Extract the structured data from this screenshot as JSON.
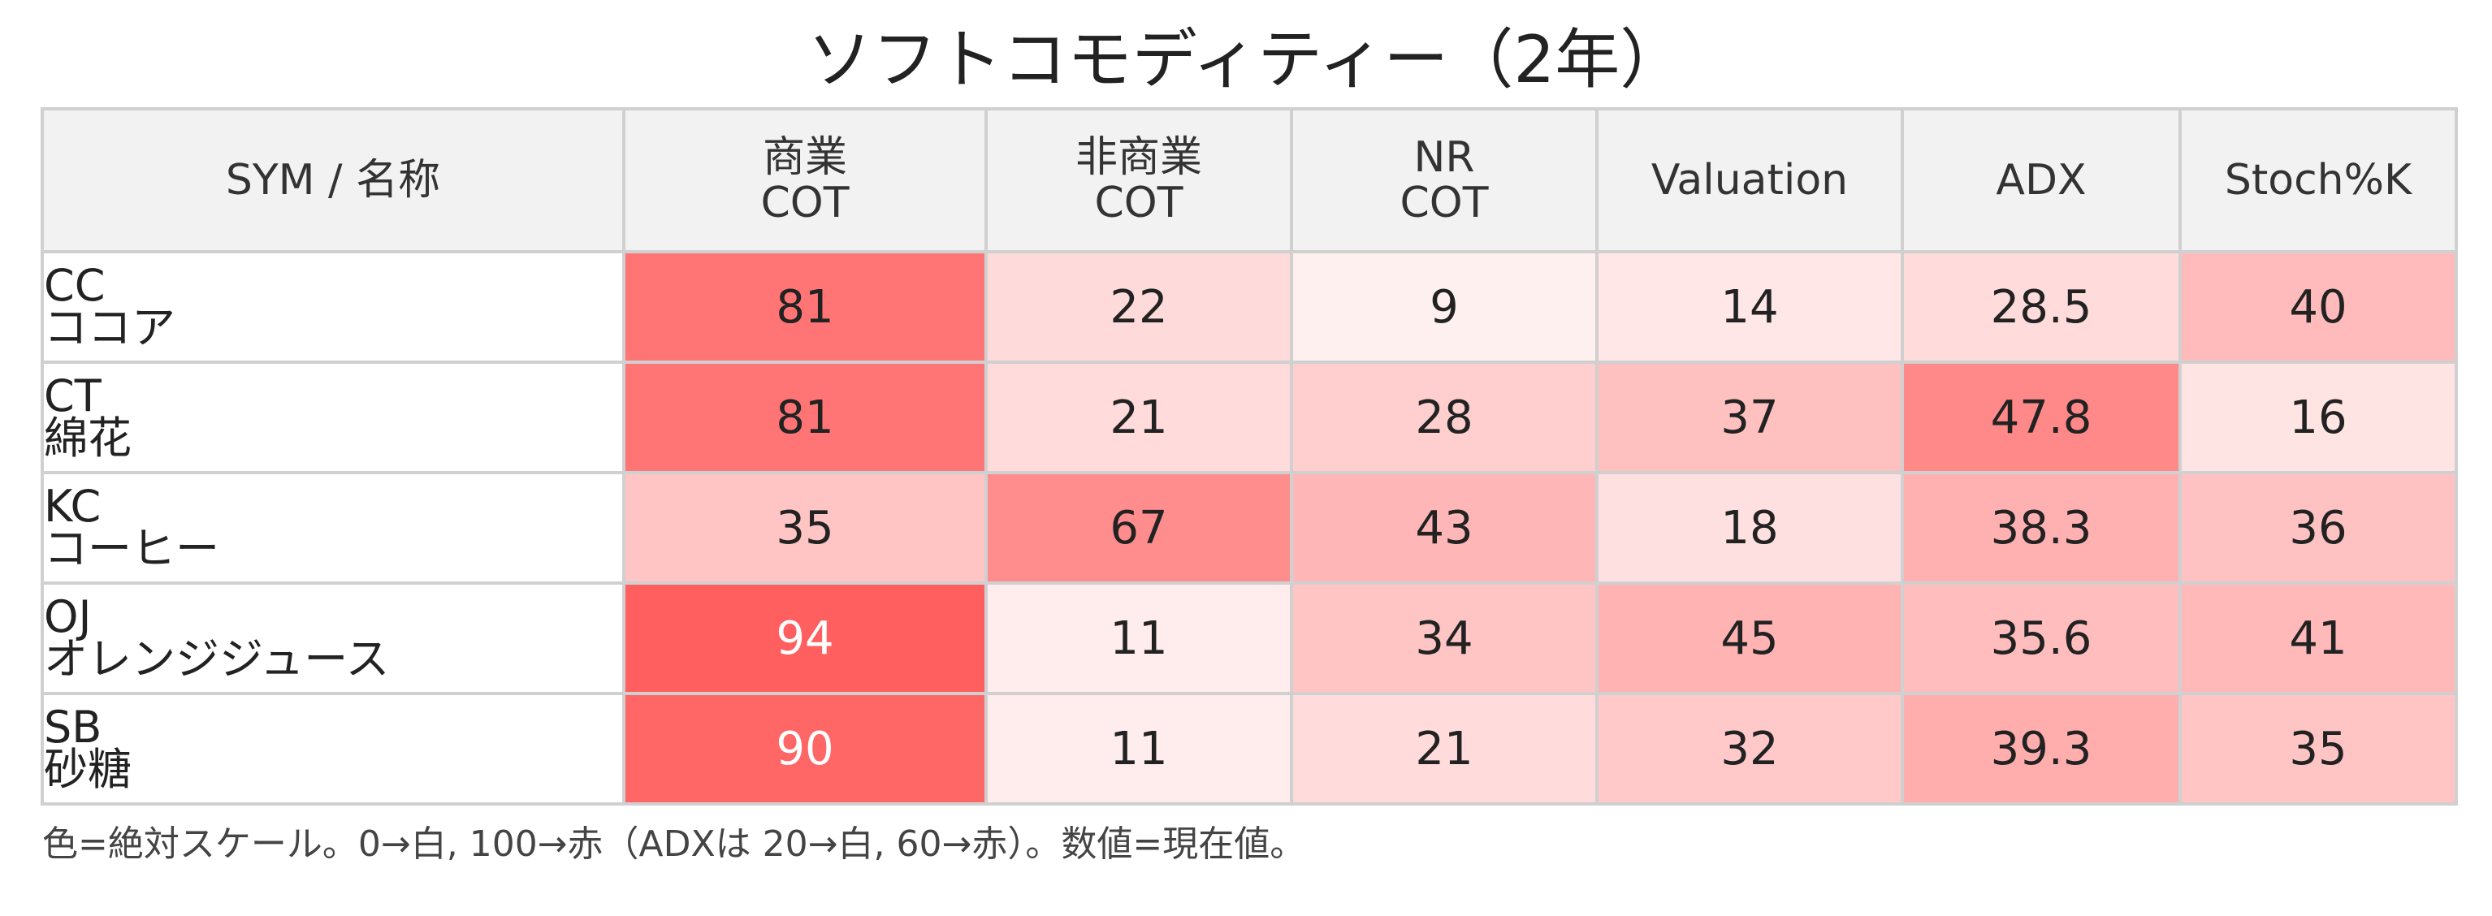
{
  "chart_data": {
    "type": "heatmap",
    "title": "ソフトコモディティー（2年）",
    "columns": [
      {
        "lines": [
          "SYM / 名称"
        ]
      },
      {
        "lines": [
          "商業",
          "COT"
        ]
      },
      {
        "lines": [
          "非商業",
          "COT"
        ]
      },
      {
        "lines": [
          "NR",
          "COT"
        ]
      },
      {
        "lines": [
          "Valuation"
        ]
      },
      {
        "lines": [
          "ADX"
        ]
      },
      {
        "lines": [
          "Stoch%K"
        ]
      }
    ],
    "rows": [
      {
        "sym": "CC",
        "name": "ココア",
        "values": [
          "81",
          "22",
          "9",
          "14",
          "28.5",
          "40"
        ]
      },
      {
        "sym": "CT",
        "name": "綿花",
        "values": [
          "81",
          "21",
          "28",
          "37",
          "47.8",
          "16"
        ]
      },
      {
        "sym": "KC",
        "name": "コーヒー",
        "values": [
          "35",
          "67",
          "43",
          "18",
          "38.3",
          "36"
        ]
      },
      {
        "sym": "OJ",
        "name": "オレンジジュース",
        "values": [
          "94",
          "11",
          "34",
          "45",
          "35.6",
          "41"
        ]
      },
      {
        "sym": "SB",
        "name": "砂糖",
        "values": [
          "90",
          "11",
          "21",
          "32",
          "39.3",
          "35"
        ]
      }
    ],
    "color_scale": {
      "low_color": "#ffffff",
      "high_color": "#ff5555",
      "default_range": [
        0,
        100
      ],
      "adx_range": [
        20,
        60
      ]
    },
    "footnote": "色=絶対スケール。0→白, 100→赤（ADXは 20→白, 60→赤）。数値=現在値。"
  }
}
